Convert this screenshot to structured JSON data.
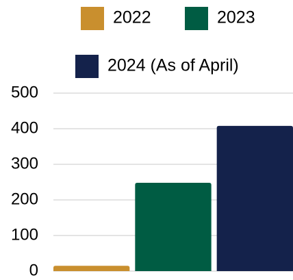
{
  "chart_data": {
    "type": "bar",
    "categories": [
      null
    ],
    "series": [
      {
        "name": "2022",
        "color": "#c98f2e",
        "values": [
          15
        ]
      },
      {
        "name": "2023",
        "color": "#005c43",
        "values": [
          248
        ]
      },
      {
        "name": "2024 (As of April)",
        "color": "#14224b",
        "values": [
          408
        ]
      }
    ],
    "ylim": [
      0,
      500
    ],
    "yticks": [
      0,
      100,
      200,
      300,
      400,
      500
    ],
    "grid": true
  }
}
